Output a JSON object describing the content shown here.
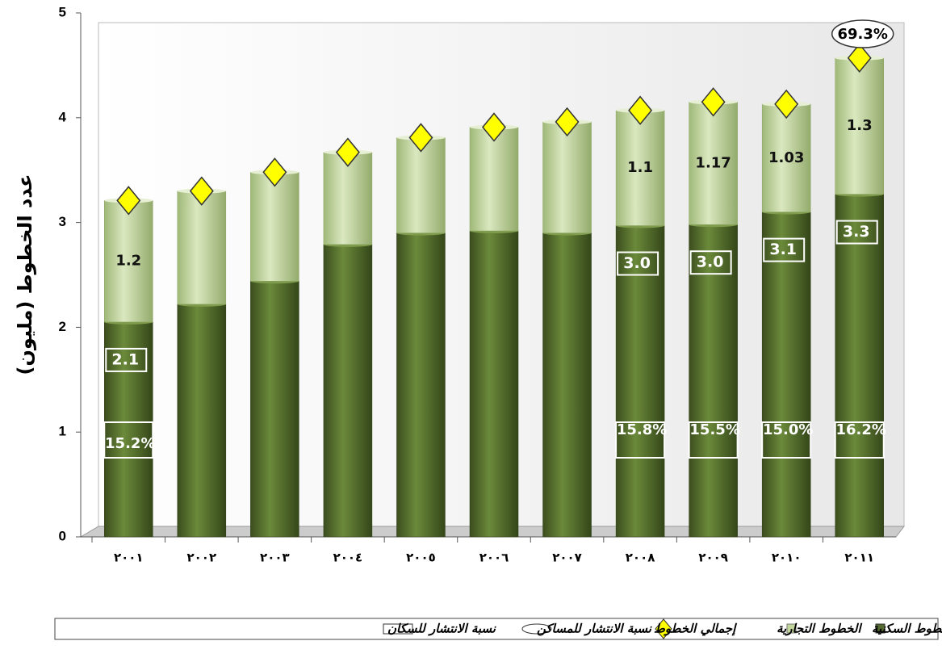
{
  "chart_data": {
    "type": "bar",
    "stacked": true,
    "y_label": "عدد الخطوط (مليون)",
    "categories": [
      "٢٠٠١",
      "٢٠٠٢",
      "٢٠٠٣",
      "٢٠٠٤",
      "٢٠٠٥",
      "٢٠٠٦",
      "٢٠٠٧",
      "٢٠٠٨",
      "٢٠٠٩",
      "٢٠١٠",
      "٢٠١١"
    ],
    "series": [
      {
        "name": "الخطوط السكنية",
        "color": "#556b2f",
        "values": [
          2.05,
          2.22,
          2.44,
          2.79,
          2.9,
          2.92,
          2.9,
          2.97,
          2.98,
          3.1,
          3.27
        ],
        "value_labels": [
          "2.1",
          null,
          null,
          null,
          null,
          null,
          null,
          "3.0",
          "3.0",
          "3.1",
          "3.3"
        ]
      },
      {
        "name": "الخطوط التجارية",
        "color": "#c2d69b",
        "values": [
          1.16,
          1.08,
          1.04,
          0.88,
          0.91,
          0.99,
          1.06,
          1.1,
          1.17,
          1.03,
          1.3
        ],
        "value_labels": [
          "1.2",
          null,
          null,
          null,
          null,
          null,
          null,
          "1.1",
          "1.17",
          "1.03",
          "1.3"
        ]
      },
      {
        "name": "إجمالي الخطوط",
        "color": "#ffff00",
        "type": "marker",
        "values": [
          3.21,
          3.3,
          3.48,
          3.67,
          3.81,
          3.91,
          3.96,
          4.07,
          4.15,
          4.13,
          4.57
        ]
      }
    ],
    "annotations": [
      {
        "name": "نسبة الانتشار للمساكن",
        "shape": "ellipse",
        "values": [
          null,
          null,
          null,
          null,
          null,
          null,
          null,
          null,
          null,
          null,
          69.3
        ],
        "value_labels": [
          null,
          null,
          null,
          null,
          null,
          null,
          null,
          null,
          null,
          null,
          "69.3%"
        ]
      },
      {
        "name": "نسبة الانتشار للسكان",
        "shape": "rect",
        "values": [
          15.2,
          null,
          null,
          null,
          null,
          null,
          null,
          15.8,
          15.5,
          15.0,
          16.2
        ],
        "value_labels": [
          "15.2%",
          null,
          null,
          null,
          null,
          null,
          null,
          "15.8%",
          "15.5%",
          "15.0%",
          "16.2%"
        ]
      }
    ],
    "ylim": [
      0,
      5
    ],
    "yticks": [
      0,
      1,
      2,
      3,
      4,
      5
    ],
    "grid": false,
    "legend": "bottom"
  }
}
